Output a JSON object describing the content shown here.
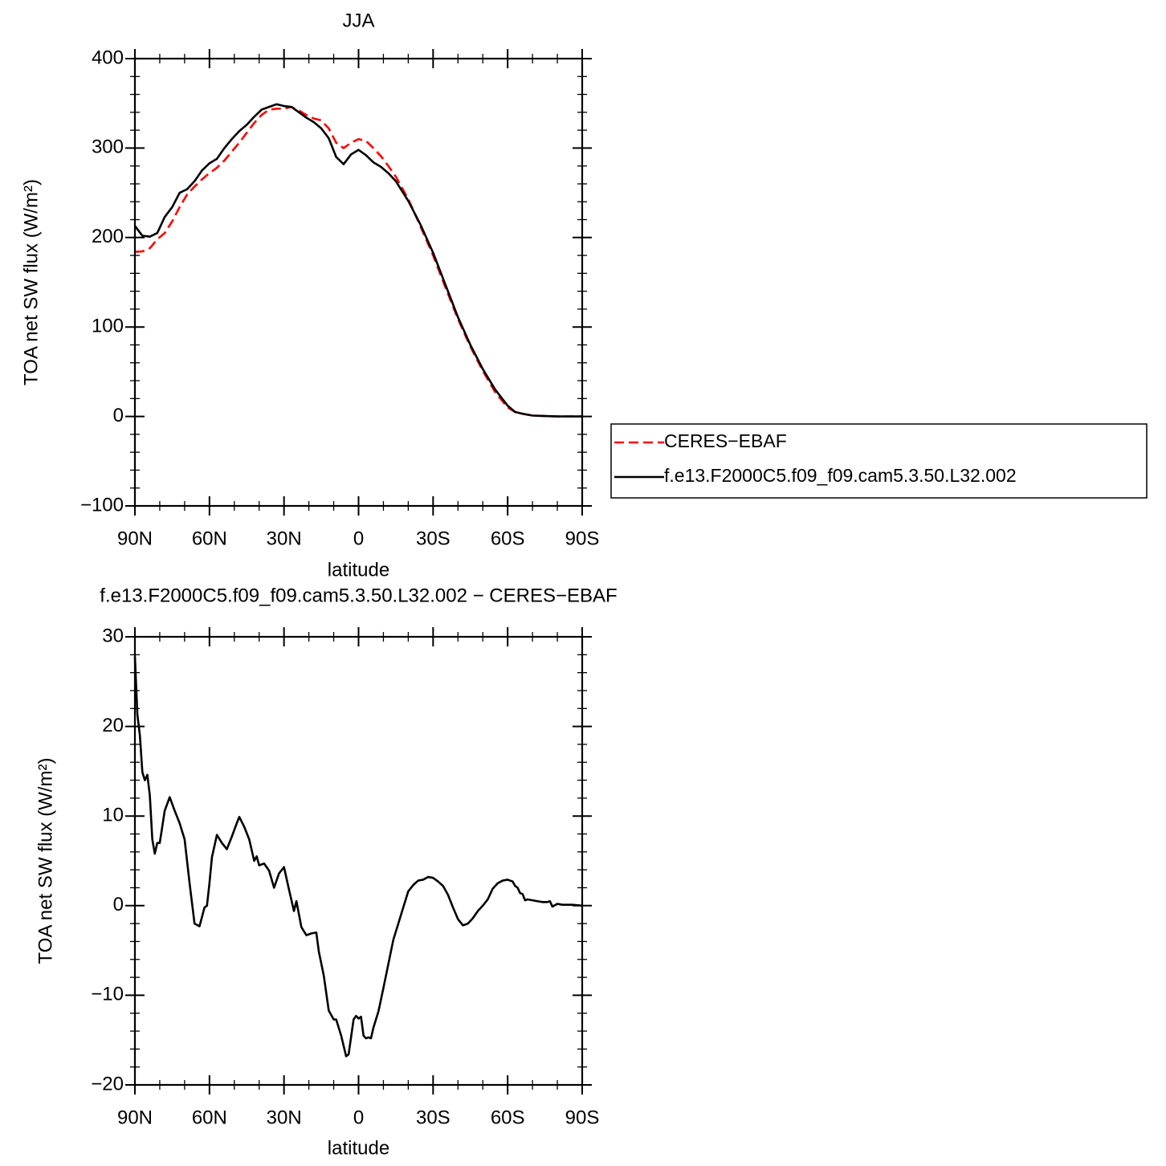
{
  "chart_data": [
    {
      "type": "line",
      "title": "JJA",
      "x_label": "latitude",
      "y_label": "TOA net SW flux (W/m²)",
      "x": [
        90,
        87,
        84,
        81,
        78,
        75,
        72,
        69,
        66,
        63,
        60,
        57,
        54,
        51,
        48,
        45,
        42,
        39,
        36,
        33,
        30,
        27,
        24,
        21,
        18,
        15,
        12,
        9,
        6,
        3,
        0,
        -3,
        -6,
        -9,
        -12,
        -15,
        -20,
        -25,
        -30,
        -35,
        -40,
        -45,
        -50,
        -55,
        -60,
        -63,
        -66,
        -70,
        -75,
        -80,
        -90
      ],
      "xlim": [
        90,
        -90
      ],
      "xticks": [
        {
          "value": 90,
          "label": "90N"
        },
        {
          "value": 60,
          "label": "60N"
        },
        {
          "value": 30,
          "label": "30N"
        },
        0,
        {
          "value": -30,
          "label": "30S"
        },
        {
          "value": -60,
          "label": "60S"
        },
        {
          "value": -90,
          "label": "90S"
        }
      ],
      "ylim": [
        -100,
        400
      ],
      "yticks": [
        {
          "value": -100,
          "label": "−100"
        },
        0,
        100,
        200,
        300,
        400
      ],
      "legend": "right",
      "series": [
        {
          "name": "CERES−EBAF",
          "color": "#ff0000",
          "line_style": "dashed",
          "values": [
            184,
            184.5,
            188,
            198,
            205,
            218,
            234,
            248,
            257,
            265,
            272,
            278,
            286,
            296,
            306,
            317,
            328,
            337,
            343,
            344,
            344,
            346,
            342,
            337,
            333,
            331,
            322,
            306,
            300,
            306,
            310,
            308,
            300,
            291,
            280,
            268,
            243,
            212,
            180,
            144,
            109,
            78,
            51,
            27,
            10,
            5,
            3,
            1,
            0.5,
            0,
            0
          ]
        },
        {
          "name": "f.e13.F2000C5.f09_f09.cam5.3.50.L32.002",
          "color": "#000000",
          "line_style": "solid",
          "values": [
            213,
            202,
            201,
            205,
            223,
            234,
            250,
            254,
            263,
            275,
            283,
            288,
            300,
            310,
            319,
            326,
            335,
            343,
            346,
            349,
            347,
            346,
            340,
            334,
            329,
            322,
            311,
            290,
            282,
            293,
            298,
            292,
            284,
            279,
            272,
            263,
            241,
            214,
            183,
            147,
            111,
            80,
            53,
            30,
            12,
            5,
            3,
            1,
            0.5,
            0,
            0
          ]
        }
      ]
    },
    {
      "type": "line",
      "title": "f.e13.F2000C5.f09_f09.cam5.3.50.L32.002 − CERES−EBAF",
      "x_label": "latitude",
      "y_label": "TOA net SW flux (W/m²)",
      "x": [
        90,
        89,
        88,
        87,
        86,
        85,
        84,
        83,
        82,
        81,
        80,
        78,
        76,
        74,
        72,
        70,
        68,
        66,
        64,
        62,
        61,
        60,
        59,
        57,
        55,
        53,
        51,
        49,
        48,
        46,
        44,
        42,
        41,
        40,
        38,
        36,
        34,
        32,
        30,
        28,
        26,
        25,
        23,
        21,
        19,
        17,
        16,
        14,
        12,
        10,
        9,
        7,
        5,
        4,
        2,
        1,
        0,
        -1,
        -2,
        -3,
        -4,
        -5,
        -6,
        -8,
        -10,
        -12,
        -14,
        -16,
        -18,
        -20,
        -22,
        -24,
        -26,
        -28,
        -30,
        -32,
        -34,
        -36,
        -38,
        -40,
        -42,
        -44,
        -46,
        -48,
        -50,
        -52,
        -54,
        -56,
        -58,
        -60,
        -62,
        -63,
        -64,
        -65,
        -66,
        -67,
        -68,
        -70,
        -72,
        -74,
        -76,
        -77,
        -78,
        -80,
        -82,
        -86,
        -90
      ],
      "values": [
        27.8,
        21.3,
        19,
        14.9,
        14,
        14.6,
        12.3,
        7.4,
        5.8,
        7,
        7,
        10.6,
        12.1,
        10.6,
        9.2,
        7.4,
        2.5,
        -2,
        -2.3,
        -0.2,
        0,
        2.5,
        5.4,
        7.9,
        7,
        6.3,
        7.7,
        9.2,
        9.9,
        8.8,
        7.4,
        5,
        5.5,
        4.5,
        4.7,
        3.9,
        2,
        3.6,
        4.3,
        1.8,
        -0.6,
        0.5,
        -2.4,
        -3.3,
        -3.1,
        -3,
        -5.1,
        -7.8,
        -11.7,
        -12.7,
        -12.7,
        -14.5,
        -16.8,
        -16.6,
        -12.7,
        -12.3,
        -12.6,
        -12.4,
        -14.5,
        -14.8,
        -14.7,
        -14.8,
        -13.6,
        -11.8,
        -9.2,
        -6.5,
        -3.8,
        -2,
        -0.2,
        1.6,
        2.3,
        2.8,
        2.9,
        3.2,
        3.1,
        2.7,
        2.2,
        1.2,
        -0.2,
        -1.5,
        -2.2,
        -2,
        -1.4,
        -0.6,
        0,
        0.7,
        1.9,
        2.5,
        2.8,
        2.9,
        2.7,
        2.2,
        2,
        1.4,
        1.3,
        0.6,
        0.7,
        0.6,
        0.5,
        0.4,
        0.4,
        0.5,
        -0.1,
        0.2,
        0.1,
        0.1,
        0
      ],
      "color": "#000000",
      "xlim": [
        90,
        -90
      ],
      "xticks": [
        {
          "value": 90,
          "label": "90N"
        },
        {
          "value": 60,
          "label": "60N"
        },
        {
          "value": 30,
          "label": "30N"
        },
        0,
        {
          "value": -30,
          "label": "30S"
        },
        {
          "value": -60,
          "label": "60S"
        },
        {
          "value": -90,
          "label": "90S"
        }
      ],
      "ylim": [
        -20,
        30
      ],
      "yticks": [
        {
          "value": -20,
          "label": "−20"
        },
        {
          "value": -10,
          "label": "−10"
        },
        0,
        10,
        20,
        30
      ]
    }
  ]
}
